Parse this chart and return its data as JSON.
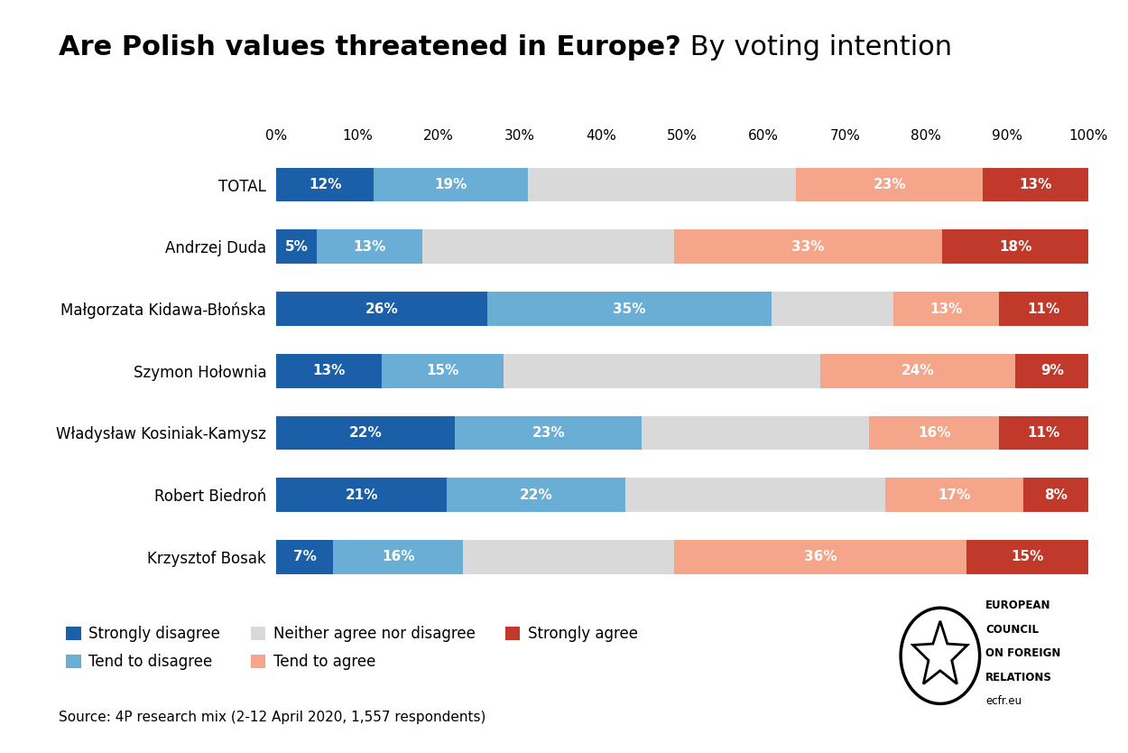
{
  "title_bold": "Are Polish values threatened in Europe?",
  "title_regular": " By voting intention",
  "categories": [
    "TOTAL",
    "Andrzej Duda",
    "Małgorzata Kidawa-Błońska",
    "Szymon Hołownia",
    "Władysław Kosiniak-Kamysz",
    "Robert Biedroń",
    "Krzysztof Bosak"
  ],
  "strongly_disagree": [
    12,
    5,
    26,
    13,
    22,
    21,
    7
  ],
  "tend_to_disagree": [
    19,
    13,
    35,
    15,
    23,
    22,
    16
  ],
  "neither": [
    33,
    31,
    15,
    39,
    28,
    32,
    26
  ],
  "tend_to_agree": [
    23,
    33,
    13,
    24,
    16,
    17,
    36
  ],
  "strongly_agree": [
    13,
    18,
    11,
    9,
    11,
    8,
    15
  ],
  "color_strongly_disagree": "#1a5fa8",
  "color_tend_to_disagree": "#6aaed6",
  "color_neither": "#d9d9d9",
  "color_tend_to_agree": "#f4a58a",
  "color_strongly_agree": "#c0392b",
  "legend_labels": [
    "Strongly disagree",
    "Tend to disagree",
    "Neither agree nor disagree",
    "Tend to agree",
    "Strongly agree"
  ],
  "source_text": "Source: 4P research mix (2-12 April 2020, 1,557 respondents)",
  "background_color": "#ffffff",
  "bar_height": 0.55,
  "bar_label_fontsize": 11,
  "category_fontsize": 12,
  "xtick_fontsize": 11,
  "title_bold_fontsize": 22,
  "title_reg_fontsize": 22
}
